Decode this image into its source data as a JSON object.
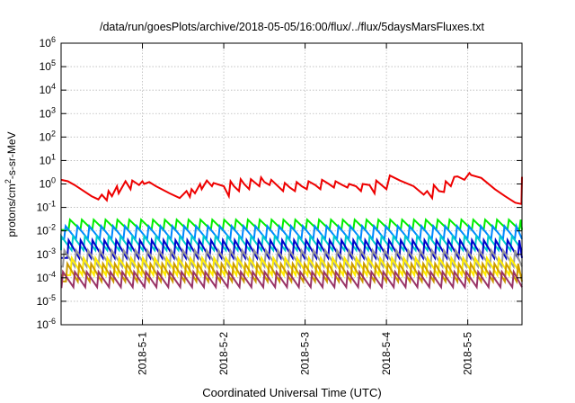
{
  "chart_data": {
    "type": "line",
    "title": "/data/run/goesPlots/archive/2018-05-05/16:00/flux/../flux/5daysMarsFluxes.txt",
    "xlabel": "Coordinated Universal Time (UTC)",
    "ylabel": {
      "base": "protons/cm",
      "sup": "2",
      "rest": "-s-sr-MeV"
    },
    "y_scale": "log",
    "ylim": [
      1e-06,
      1000000.0
    ],
    "y_ticks": [
      {
        "exp": "-6",
        "value": 1e-06
      },
      {
        "exp": "-5",
        "value": 1e-05
      },
      {
        "exp": "-4",
        "value": 0.0001
      },
      {
        "exp": "-3",
        "value": 0.001
      },
      {
        "exp": "-2",
        "value": 0.01
      },
      {
        "exp": "-1",
        "value": 0.1
      },
      {
        "exp": "0",
        "value": 1
      },
      {
        "exp": "1",
        "value": 10
      },
      {
        "exp": "2",
        "value": 100
      },
      {
        "exp": "3",
        "value": 1000
      },
      {
        "exp": "4",
        "value": 10000.0
      },
      {
        "exp": "5",
        "value": 100000.0
      },
      {
        "exp": "6",
        "value": 1000000.0
      }
    ],
    "y_tick_base": "10",
    "xlim": [
      "2018-04-30T00:00",
      "2018-05-05T16:00"
    ],
    "x_ticks": [
      {
        "label": "2018-5-1",
        "date": "2018-05-01T00:00"
      },
      {
        "label": "2018-5-2",
        "date": "2018-05-02T00:00"
      },
      {
        "label": "2018-5-3",
        "date": "2018-05-03T00:00"
      },
      {
        "label": "2018-5-4",
        "date": "2018-05-04T00:00"
      },
      {
        "label": "2018-5-5",
        "date": "2018-05-05T00:00"
      }
    ],
    "grid": true,
    "series": [
      {
        "color": "#ee0000",
        "x": [
          "2018-04-30T00:00",
          "2018-04-30T02:00",
          "2018-04-30T04:00",
          "2018-04-30T09:00",
          "2018-04-30T11:00",
          "2018-04-30T12:00",
          "2018-04-30T13:30",
          "2018-04-30T14:00",
          "2018-04-30T15:00",
          "2018-04-30T16:30",
          "2018-04-30T17:00",
          "2018-04-30T19:00",
          "2018-04-30T20:30",
          "2018-04-30T21:00",
          "2018-04-30T23:00",
          "2018-05-01T00:00",
          "2018-05-01T00:30",
          "2018-05-01T02:00",
          "2018-05-01T04:00",
          "2018-05-01T08:00",
          "2018-05-01T11:00",
          "2018-05-01T13:00",
          "2018-05-01T14:00",
          "2018-05-01T14:30",
          "2018-05-01T15:30",
          "2018-05-01T17:00",
          "2018-05-01T17:30",
          "2018-05-01T19:00",
          "2018-05-01T20:30",
          "2018-05-01T21:00",
          "2018-05-02T00:00",
          "2018-05-02T01:30",
          "2018-05-02T02:00",
          "2018-05-02T03:00",
          "2018-05-02T04:30",
          "2018-05-02T05:00",
          "2018-05-02T06:00",
          "2018-05-02T07:30",
          "2018-05-02T08:00",
          "2018-05-02T09:00",
          "2018-05-02T10:30",
          "2018-05-02T11:00",
          "2018-05-02T12:00",
          "2018-05-02T13:30",
          "2018-05-02T14:00",
          "2018-05-02T16:00",
          "2018-05-02T17:30",
          "2018-05-02T18:00",
          "2018-05-02T19:30",
          "2018-05-02T21:00",
          "2018-05-02T21:30",
          "2018-05-02T23:00",
          "2018-05-03T00:30",
          "2018-05-03T01:00",
          "2018-05-03T03:00",
          "2018-05-03T04:30",
          "2018-05-03T05:00",
          "2018-05-03T07:00",
          "2018-05-03T08:30",
          "2018-05-03T09:00",
          "2018-05-03T11:00",
          "2018-05-03T12:30",
          "2018-05-03T13:00",
          "2018-05-03T15:00",
          "2018-05-03T16:30",
          "2018-05-03T17:00",
          "2018-05-03T19:00",
          "2018-05-03T20:30",
          "2018-05-03T21:00",
          "2018-05-04T00:00",
          "2018-05-04T01:00",
          "2018-05-04T04:00",
          "2018-05-04T08:00",
          "2018-05-04T11:00",
          "2018-05-04T12:00",
          "2018-05-04T13:30",
          "2018-05-04T14:00",
          "2018-05-04T15:30",
          "2018-05-04T17:00",
          "2018-05-04T17:30",
          "2018-05-04T19:00",
          "2018-05-04T20:00",
          "2018-05-04T21:00",
          "2018-05-04T23:00",
          "2018-05-05T00:30",
          "2018-05-05T01:00",
          "2018-05-05T04:00",
          "2018-05-05T08:00",
          "2018-05-05T11:00",
          "2018-05-05T14:00",
          "2018-05-05T15:50",
          "2018-05-05T16:00"
        ],
        "values": [
          1.5,
          1.3,
          0.9,
          0.3,
          0.22,
          0.35,
          0.2,
          0.5,
          0.3,
          0.8,
          0.4,
          1.3,
          0.6,
          1.4,
          0.9,
          1.3,
          1.0,
          1.2,
          0.8,
          0.4,
          0.25,
          0.5,
          0.28,
          0.6,
          0.4,
          1.0,
          0.6,
          1.4,
          0.8,
          1.1,
          0.8,
          0.3,
          1.3,
          0.8,
          0.5,
          1.6,
          1.0,
          0.6,
          1.6,
          1.2,
          0.8,
          1.9,
          1.2,
          0.9,
          1.5,
          0.8,
          0.5,
          1.1,
          0.7,
          0.5,
          1.2,
          0.8,
          0.6,
          1.3,
          0.9,
          0.6,
          1.5,
          1.0,
          0.7,
          1.3,
          0.9,
          0.7,
          1.0,
          0.8,
          0.5,
          1.0,
          0.9,
          0.4,
          1.4,
          0.6,
          2.3,
          1.4,
          0.8,
          0.35,
          0.5,
          0.25,
          0.9,
          0.5,
          0.45,
          1.3,
          0.8,
          2.0,
          2.1,
          1.5,
          2.9,
          2.4,
          1.8,
          0.6,
          0.3,
          0.16,
          0.14,
          2.0
        ]
      },
      {
        "color": "#00ee00",
        "x_range": [
          "2018-04-30T00:00",
          "2018-05-05T16:00"
        ],
        "period_hours": 3.5,
        "low": 0.011,
        "high": 0.03
      },
      {
        "color": "#0088ff",
        "x_range": [
          "2018-04-30T00:00",
          "2018-05-05T16:00"
        ],
        "period_hours": 3.5,
        "low": 0.0045,
        "high": 0.016
      },
      {
        "color": "#00cccc",
        "x_range": [
          "2018-04-30T00:00",
          "2018-05-05T16:00"
        ],
        "period_hours": 3.5,
        "low": 0.0015,
        "high": 0.006
      },
      {
        "color": "#0000cc",
        "x_range": [
          "2018-04-30T00:00",
          "2018-05-05T16:00"
        ],
        "period_hours": 3.5,
        "low": 0.0007,
        "high": 0.004
      },
      {
        "color": "#999999",
        "x_range": [
          "2018-04-30T00:00",
          "2018-05-05T16:00"
        ],
        "period_hours": 3.5,
        "low": 0.0003,
        "high": 0.0015
      },
      {
        "color": "#ffee00",
        "x_range": [
          "2018-04-30T00:00",
          "2018-05-05T16:00"
        ],
        "period_hours": 3.5,
        "low": 0.00013,
        "high": 0.0007
      },
      {
        "color": "#cc9900",
        "x_range": [
          "2018-04-30T00:00",
          "2018-05-05T16:00"
        ],
        "period_hours": 3.5,
        "low": 7e-05,
        "high": 0.0004
      },
      {
        "color": "#993366",
        "x_range": [
          "2018-04-30T00:00",
          "2018-05-05T16:00"
        ],
        "period_hours": 3.5,
        "low": 4e-05,
        "high": 0.00018
      }
    ]
  }
}
